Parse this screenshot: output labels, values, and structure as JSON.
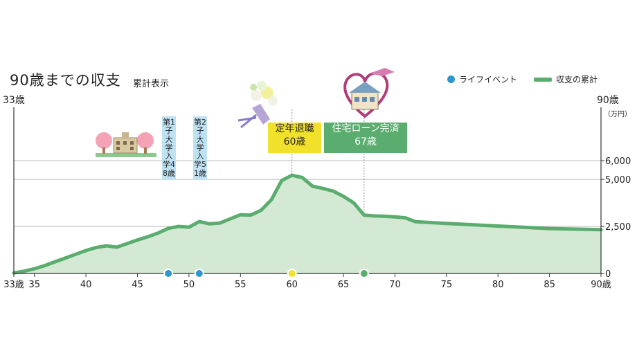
{
  "colors": {
    "line": "#5aad6e",
    "area": "#d3e9d4",
    "event_dot": "#2e95cf",
    "retire": "#f1e12a",
    "housing": "#5aad6e",
    "axis": "#333333",
    "grid": "#bbbbbb"
  },
  "icons": [
    "school-building-icon",
    "flower-bouquet-icon",
    "heart-house-icon"
  ],
  "chart_data": {
    "type": "area",
    "title": "90歳までの収支",
    "subtitle": "累計表示",
    "legend": {
      "event": "ライフイベント",
      "line": "収支の累計",
      "placement": "top-right"
    },
    "x_start_label": "33歳",
    "x_end_label": "90歳",
    "y_unit": "（万円）",
    "xlim": [
      33,
      90
    ],
    "ylim": [
      0,
      6000
    ],
    "x_ticks": [
      {
        "v": 33,
        "label": "33歳"
      },
      {
        "v": 35,
        "label": "35"
      },
      {
        "v": 40,
        "label": "40"
      },
      {
        "v": 45,
        "label": "45"
      },
      {
        "v": 50,
        "label": "50"
      },
      {
        "v": 55,
        "label": "55"
      },
      {
        "v": 60,
        "label": "60"
      },
      {
        "v": 65,
        "label": "65"
      },
      {
        "v": 70,
        "label": "70"
      },
      {
        "v": 75,
        "label": "75"
      },
      {
        "v": 80,
        "label": "80"
      },
      {
        "v": 85,
        "label": "85"
      },
      {
        "v": 90,
        "label": "90歳"
      }
    ],
    "y_ticks": [
      {
        "v": 0,
        "label": "0"
      },
      {
        "v": 2500,
        "label": "2,500"
      },
      {
        "v": 5000,
        "label": "5,000"
      },
      {
        "v": 6000,
        "label": "6,000"
      }
    ],
    "grid": true,
    "series": [
      {
        "name": "収支の累計",
        "x": [
          33,
          34,
          35,
          36,
          37,
          38,
          39,
          40,
          41,
          42,
          43,
          44,
          45,
          46,
          47,
          48,
          49,
          50,
          51,
          52,
          53,
          54,
          55,
          56,
          57,
          58,
          59,
          60,
          61,
          62,
          63,
          64,
          65,
          66,
          67,
          68,
          69,
          70,
          71,
          72,
          75,
          80,
          85,
          90
        ],
        "y": [
          30,
          120,
          250,
          420,
          620,
          820,
          1020,
          1220,
          1380,
          1470,
          1400,
          1590,
          1780,
          1950,
          2150,
          2400,
          2500,
          2460,
          2760,
          2640,
          2680,
          2900,
          3120,
          3100,
          3360,
          3920,
          4940,
          5220,
          5100,
          4640,
          4520,
          4380,
          4100,
          3750,
          3100,
          3060,
          3040,
          3010,
          2960,
          2750,
          2660,
          2520,
          2390,
          2330
        ]
      }
    ],
    "events": [
      {
        "x": 48,
        "label": "第1子大学入学48歳",
        "kind": "education"
      },
      {
        "x": 51,
        "label": "第2子大学入学51歳",
        "kind": "education"
      },
      {
        "x": 60,
        "label": "定年退職",
        "age": "60歳",
        "kind": "retirement"
      },
      {
        "x": 67,
        "label": "住宅ローン完済",
        "age": "67歳",
        "kind": "housing"
      }
    ]
  }
}
